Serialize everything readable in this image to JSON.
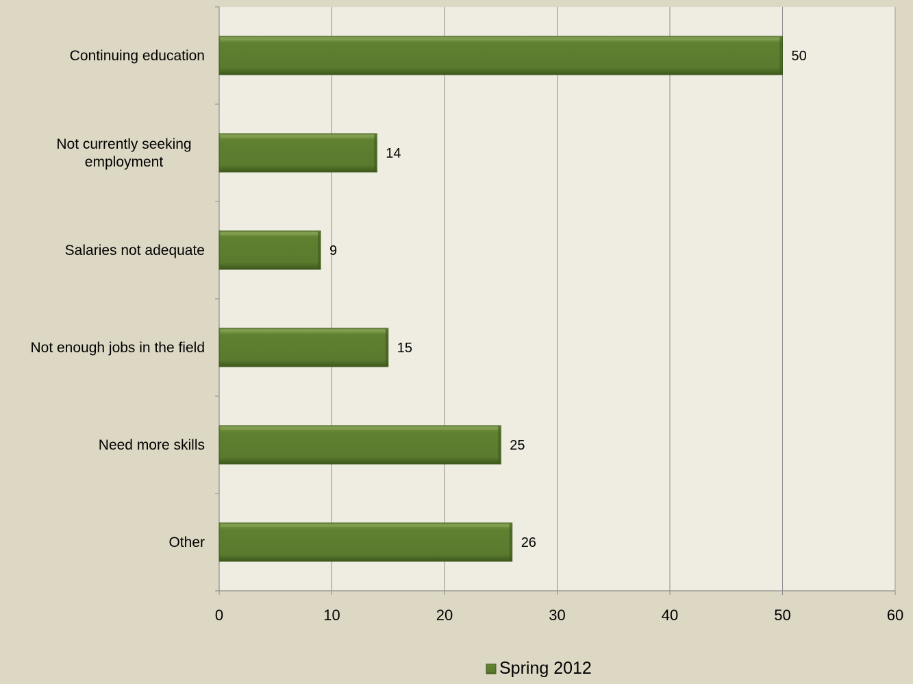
{
  "chart_data": {
    "type": "bar",
    "orientation": "horizontal",
    "title": "",
    "xlabel": "",
    "ylabel": "",
    "categories": [
      [
        "Continuing education"
      ],
      [
        "Not currently seeking",
        "employment"
      ],
      [
        "Salaries not adequate"
      ],
      [
        "Not enough jobs in the field"
      ],
      [
        "Need more skills"
      ],
      [
        "Other"
      ]
    ],
    "series": [
      {
        "name": "Spring 2012",
        "values": [
          50,
          14,
          9,
          15,
          25,
          26
        ],
        "color": "#5a7a2e"
      }
    ],
    "xlim": [
      0,
      60
    ],
    "xticks": [
      0,
      10,
      20,
      30,
      40,
      50,
      60
    ],
    "grid": "vertical",
    "legend": "bottom",
    "colors": {
      "background": "#ddd8c4",
      "plot_area": "#efece2",
      "bar": "#5a7a2e",
      "bar_dark": "#3e5a1c",
      "bar_light": "#8aa65a",
      "gridline": "#8c8c8c",
      "axis": "#8c8c8c"
    }
  }
}
